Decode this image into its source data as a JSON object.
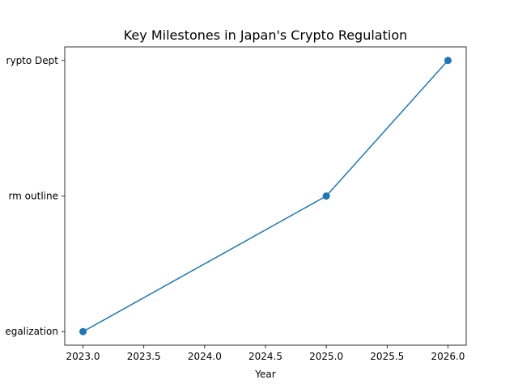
{
  "chart_data": {
    "type": "line",
    "title": "Key Milestones in Japan's Crypto Regulation",
    "xlabel": "Year",
    "ylabel": "",
    "x": [
      2023.0,
      2025.0,
      2026.0
    ],
    "categories": [
      "egalization",
      "rm outline",
      "rypto Dept"
    ],
    "series": [
      {
        "values": [
          0,
          1,
          2
        ],
        "color": "#1f77b4",
        "marker": "circle"
      }
    ],
    "xlim": [
      2022.85,
      2026.15
    ],
    "ylim": [
      -0.1,
      2.1
    ],
    "xticks": [
      2023.0,
      2023.5,
      2024.0,
      2024.5,
      2025.0,
      2025.5,
      2026.0
    ],
    "xtick_labels": [
      "2023.0",
      "2023.5",
      "2024.0",
      "2024.5",
      "2025.0",
      "2025.5",
      "2026.0"
    ],
    "grid": false,
    "legend": "none"
  }
}
